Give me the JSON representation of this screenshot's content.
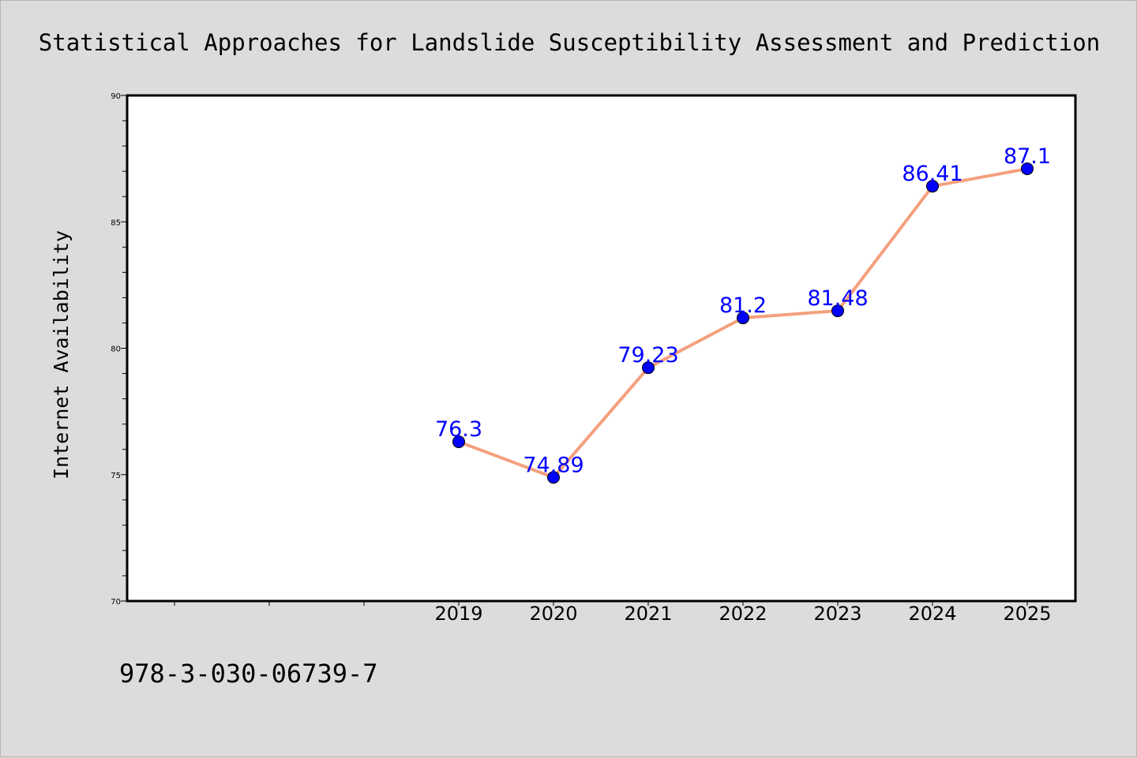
{
  "chart_data": {
    "type": "line",
    "title": "Statistical Approaches for Landslide Susceptibility Assessment and Prediction",
    "xlabel": "",
    "ylabel": "Internet Availability",
    "categories": [
      "2019",
      "2020",
      "2021",
      "2022",
      "2023",
      "2024",
      "2025"
    ],
    "series": [
      {
        "values": [
          76.3,
          74.89,
          79.23,
          81.2,
          81.48,
          86.41,
          87.1
        ],
        "labels": [
          "76.3",
          "74.89",
          "79.23",
          "81.2",
          "81.48",
          "86.41",
          "87.1"
        ]
      }
    ],
    "ylim": [
      70,
      90
    ],
    "yticks": [
      "70",
      "75",
      "80",
      "85",
      "90"
    ],
    "grid": false,
    "legend": "none",
    "colors": {
      "line": "#f4a07e",
      "marker": "#0000ff",
      "data_label": "#0000ff",
      "plot_background": "#ffffff",
      "page_background": "#dcdcdc"
    }
  },
  "footer": {
    "isbn": "978-3-030-06739-7"
  }
}
